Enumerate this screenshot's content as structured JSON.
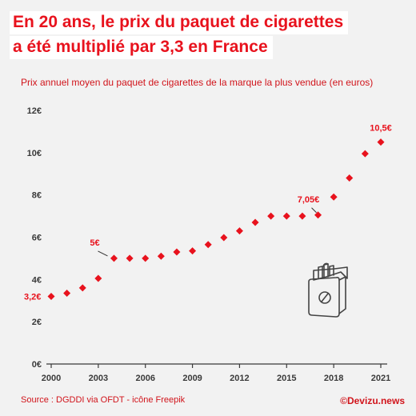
{
  "header": {
    "title_line1": "En 20 ans, le prix du paquet de cigarettes",
    "title_line2": "a été multiplié par 3,3 en France"
  },
  "footer": {
    "source": "Source : DGDDI via OFDT - icône Freepik",
    "brand": "©Devizu.news"
  },
  "chart_data": {
    "type": "scatter",
    "title": "En 20 ans, le prix du paquet de cigarettes a été multiplié par 3,3 en France",
    "subtitle": "Prix annuel moyen du paquet de cigarettes de la marque la plus vendue (en euros)",
    "xlabel": "",
    "ylabel": "",
    "x_tick_labels": [
      "2000",
      "2003",
      "2006",
      "2009",
      "2012",
      "2015",
      "2018",
      "2021"
    ],
    "x_ticks": [
      2000,
      2003,
      2006,
      2009,
      2012,
      2015,
      2018,
      2021
    ],
    "y_tick_labels": [
      "0€",
      "2€",
      "4€",
      "6€",
      "8€",
      "10€",
      "12€"
    ],
    "y_ticks": [
      0,
      2,
      4,
      6,
      8,
      10,
      12
    ],
    "xlim": [
      2000,
      2021
    ],
    "ylim": [
      0,
      12
    ],
    "grid": false,
    "marker_color": "#e8121d",
    "axis_color": "#3a3a3a",
    "series": [
      {
        "x": [
          2000,
          2001,
          2002,
          2003,
          2004,
          2005,
          2006,
          2007,
          2008,
          2009,
          2010,
          2011,
          2012,
          2013,
          2014,
          2015,
          2016,
          2017,
          2018,
          2019,
          2020,
          2021
        ],
        "values": [
          3.2,
          3.35,
          3.6,
          4.05,
          5.0,
          5.0,
          5.0,
          5.1,
          5.3,
          5.35,
          5.65,
          5.98,
          6.3,
          6.7,
          7.0,
          7.0,
          7.0,
          7.05,
          7.9,
          8.8,
          9.95,
          10.5
        ]
      }
    ],
    "annotations": [
      {
        "text": "3,2€",
        "x": 2000,
        "y": 3.2
      },
      {
        "text": "5€",
        "x": 2004,
        "y": 5.0
      },
      {
        "text": "7,05€",
        "x": 2017,
        "y": 7.05
      },
      {
        "text": "10,5€",
        "x": 2021,
        "y": 10.5
      }
    ],
    "illustration": "cigarette-pack-icon"
  }
}
